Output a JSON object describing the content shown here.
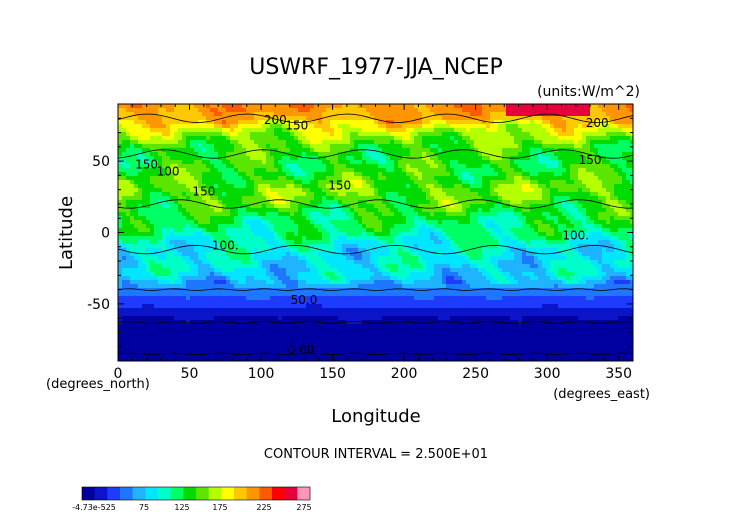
{
  "chart_data": {
    "type": "heatmap",
    "title": "USWRF_1977-JJA_NCEP",
    "units": "(units:W/m^2)",
    "xlabel": "Longitude",
    "ylabel": "Latitude",
    "x_unit_note": "(degrees_east)",
    "y_unit_note": "(degrees_north)",
    "xlim": [
      0,
      360
    ],
    "ylim": [
      -90,
      90
    ],
    "x_ticks": [
      0,
      50,
      100,
      150,
      200,
      250,
      300,
      350
    ],
    "y_ticks": [
      -50,
      0,
      50
    ],
    "contour_interval_text": "CONTOUR INTERVAL = 2.500E+01",
    "contour_labels": [
      {
        "text": "200",
        "lon": 110,
        "lat": 76
      },
      {
        "text": "150",
        "lon": 125,
        "lat": 72
      },
      {
        "text": "200",
        "lon": 335,
        "lat": 74
      },
      {
        "text": "150",
        "lon": 20,
        "lat": 45
      },
      {
        "text": "100",
        "lon": 35,
        "lat": 40
      },
      {
        "text": "150",
        "lon": 60,
        "lat": 26
      },
      {
        "text": "150",
        "lon": 155,
        "lat": 30
      },
      {
        "text": "150",
        "lon": 330,
        "lat": 48
      },
      {
        "text": "100.",
        "lon": 320,
        "lat": -5
      },
      {
        "text": "100.",
        "lon": 75,
        "lat": -12
      },
      {
        "text": "50.0",
        "lon": 130,
        "lat": -50
      },
      {
        "text": "0.00",
        "lon": 128,
        "lat": -85
      }
    ],
    "zonal_profile": [
      {
        "lat": 90,
        "value": 230
      },
      {
        "lat": 80,
        "value": 215
      },
      {
        "lat": 70,
        "value": 175
      },
      {
        "lat": 60,
        "value": 150
      },
      {
        "lat": 50,
        "value": 140
      },
      {
        "lat": 40,
        "value": 145
      },
      {
        "lat": 30,
        "value": 160
      },
      {
        "lat": 20,
        "value": 150
      },
      {
        "lat": 10,
        "value": 130
      },
      {
        "lat": 0,
        "value": 120
      },
      {
        "lat": -10,
        "value": 100
      },
      {
        "lat": -20,
        "value": 95
      },
      {
        "lat": -30,
        "value": 90
      },
      {
        "lat": -40,
        "value": 60
      },
      {
        "lat": -50,
        "value": 40
      },
      {
        "lat": -60,
        "value": 15
      },
      {
        "lat": -70,
        "value": 10
      },
      {
        "lat": -80,
        "value": 5
      },
      {
        "lat": -90,
        "value": 0
      }
    ],
    "colorbar": {
      "labels": [
        "-4.73e-525",
        "75",
        "125",
        "175",
        "225",
        "275"
      ],
      "colors": [
        "#0000a0",
        "#0a14c8",
        "#1e3cff",
        "#1e78ff",
        "#1eb4ff",
        "#00e6ff",
        "#00ffc8",
        "#00ff64",
        "#00dc00",
        "#5ae600",
        "#b4ff00",
        "#ffff00",
        "#ffc800",
        "#ff9600",
        "#ff5a00",
        "#ff0000",
        "#e6003c",
        "#ff96b4"
      ]
    }
  }
}
